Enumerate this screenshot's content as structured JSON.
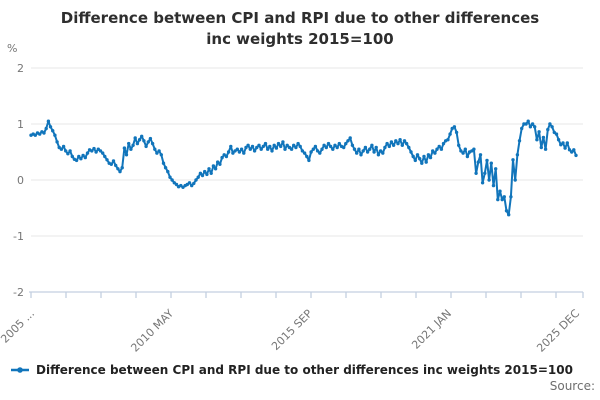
{
  "title": {
    "text": "Difference between CPI and RPI due to other differences inc weights 2015=100",
    "line1": "Difference between CPI and RPI due to other differences",
    "line2": "inc weights 2015=100"
  },
  "y_axis": {
    "unit_label": "%",
    "tick_labels": [
      "2",
      "1",
      "0",
      "-1",
      "-2"
    ],
    "max": 2,
    "min": -2
  },
  "x_axis": {
    "labels": [
      {
        "text": "2005 ...",
        "month": 0
      },
      {
        "text": "2010 MAY",
        "month": 64
      },
      {
        "text": "2015 SEP",
        "month": 128
      },
      {
        "text": "2021 JAN",
        "month": 192
      },
      {
        "text": "2025 DEC",
        "month": 251
      }
    ],
    "minor_tick_count": 16
  },
  "legend": {
    "marker": "line-with-dot-icon",
    "label": "Difference between CPI and RPI due to other differences inc weights 2015=100"
  },
  "footer": {
    "source_label": "Source:"
  },
  "colors": {
    "series": "#1175bb",
    "grid": "#e7e7e7",
    "axis": "#c4cfe0",
    "title_text": "#2e2e2e",
    "tick_text": "#767676",
    "legend_text": "#222222",
    "source_text": "#6e6e6e",
    "background": "#ffffff"
  },
  "chart_data": {
    "type": "line",
    "title": "Difference between CPI and RPI due to other differences inc weights 2015=100",
    "xlabel": "",
    "ylabel": "%",
    "ylim": [
      -2,
      2
    ],
    "y_ticks": [
      2,
      1,
      0,
      -1,
      -2
    ],
    "grid": "horizontal",
    "legend_position": "bottom-left",
    "frequency": "monthly",
    "start": "2005 JAN",
    "end": "2025 DEC",
    "x_tick_labels": [
      "2005 ...",
      "2010 MAY",
      "2015 SEP",
      "2021 JAN",
      "2025 DEC"
    ],
    "series": [
      {
        "name": "Difference between CPI and RPI due to other differences inc weights 2015=100",
        "values": [
          0.8,
          0.82,
          0.8,
          0.84,
          0.82,
          0.86,
          0.84,
          0.92,
          1.05,
          0.95,
          0.88,
          0.8,
          0.68,
          0.58,
          0.55,
          0.6,
          0.52,
          0.47,
          0.52,
          0.42,
          0.37,
          0.35,
          0.42,
          0.38,
          0.44,
          0.4,
          0.48,
          0.54,
          0.52,
          0.56,
          0.5,
          0.55,
          0.52,
          0.48,
          0.42,
          0.36,
          0.3,
          0.28,
          0.34,
          0.26,
          0.2,
          0.15,
          0.22,
          0.57,
          0.45,
          0.65,
          0.55,
          0.62,
          0.75,
          0.65,
          0.72,
          0.78,
          0.7,
          0.6,
          0.68,
          0.74,
          0.65,
          0.55,
          0.48,
          0.52,
          0.45,
          0.3,
          0.22,
          0.15,
          0.05,
          0.0,
          -0.05,
          -0.08,
          -0.12,
          -0.1,
          -0.13,
          -0.1,
          -0.08,
          -0.05,
          -0.1,
          -0.06,
          0.0,
          0.05,
          0.12,
          0.08,
          0.15,
          0.1,
          0.2,
          0.12,
          0.25,
          0.2,
          0.32,
          0.28,
          0.4,
          0.45,
          0.42,
          0.5,
          0.6,
          0.48,
          0.52,
          0.55,
          0.5,
          0.55,
          0.48,
          0.58,
          0.62,
          0.55,
          0.6,
          0.52,
          0.58,
          0.62,
          0.55,
          0.6,
          0.65,
          0.55,
          0.6,
          0.52,
          0.62,
          0.57,
          0.65,
          0.6,
          0.68,
          0.55,
          0.62,
          0.58,
          0.55,
          0.62,
          0.58,
          0.65,
          0.6,
          0.52,
          0.48,
          0.42,
          0.35,
          0.5,
          0.55,
          0.6,
          0.52,
          0.48,
          0.55,
          0.62,
          0.58,
          0.65,
          0.6,
          0.55,
          0.62,
          0.58,
          0.65,
          0.6,
          0.58,
          0.65,
          0.7,
          0.75,
          0.62,
          0.55,
          0.48,
          0.55,
          0.45,
          0.52,
          0.58,
          0.5,
          0.55,
          0.62,
          0.5,
          0.58,
          0.45,
          0.52,
          0.48,
          0.58,
          0.65,
          0.6,
          0.68,
          0.62,
          0.7,
          0.65,
          0.72,
          0.62,
          0.7,
          0.65,
          0.58,
          0.5,
          0.42,
          0.35,
          0.45,
          0.38,
          0.3,
          0.42,
          0.32,
          0.45,
          0.4,
          0.52,
          0.48,
          0.55,
          0.6,
          0.55,
          0.65,
          0.7,
          0.72,
          0.82,
          0.92,
          0.95,
          0.85,
          0.62,
          0.52,
          0.48,
          0.55,
          0.42,
          0.5,
          0.52,
          0.55,
          0.12,
          0.32,
          0.45,
          -0.05,
          0.12,
          0.35,
          0.0,
          0.3,
          -0.1,
          0.2,
          -0.35,
          -0.2,
          -0.35,
          -0.3,
          -0.55,
          -0.62,
          -0.3,
          0.36,
          0.0,
          0.45,
          0.7,
          0.92,
          1.0,
          1.0,
          1.05,
          0.95,
          1.0,
          0.95,
          0.72,
          0.86,
          0.58,
          0.76,
          0.55,
          0.9,
          1.0,
          0.95,
          0.85,
          0.82,
          0.72,
          0.63,
          0.66,
          0.57,
          0.66,
          0.54,
          0.5,
          0.54,
          0.44
        ]
      }
    ]
  }
}
